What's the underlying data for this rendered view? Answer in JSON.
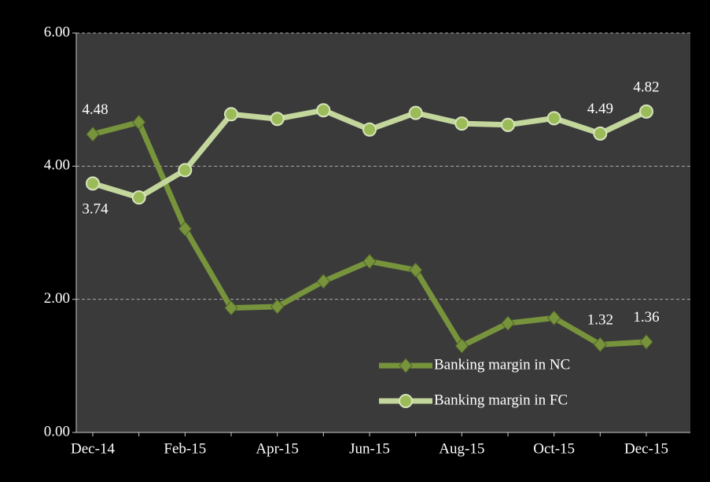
{
  "chart_data": {
    "type": "line",
    "categories": [
      "Dec-14",
      null,
      "Feb-15",
      null,
      "Apr-15",
      null,
      "Jun-15",
      null,
      "Aug-15",
      null,
      "Oct-15",
      null,
      "Dec-15"
    ],
    "series": [
      {
        "name": "Banking margin in NC",
        "color": "#77933c",
        "marker": "diamond",
        "values": [
          4.48,
          4.66,
          3.06,
          1.87,
          1.89,
          2.27,
          2.57,
          2.44,
          1.3,
          1.64,
          1.72,
          1.32,
          1.36
        ],
        "value_labels": [
          "4.48",
          null,
          null,
          null,
          null,
          null,
          null,
          null,
          null,
          null,
          null,
          "1.32",
          "1.36"
        ]
      },
      {
        "name": "Banking margin in FC",
        "color": "#c3d69b",
        "marker": "circle",
        "values": [
          3.74,
          3.53,
          3.94,
          4.78,
          4.71,
          4.84,
          4.55,
          4.8,
          4.64,
          4.62,
          4.72,
          4.49,
          4.82
        ],
        "value_labels": [
          "3.74",
          null,
          null,
          null,
          null,
          null,
          null,
          null,
          null,
          null,
          null,
          "4.49",
          "4.82"
        ]
      }
    ],
    "ylim": [
      0,
      6
    ],
    "yticks": [
      {
        "value": 0,
        "label": "0.00"
      },
      {
        "value": 2,
        "label": "2.00"
      },
      {
        "value": 4,
        "label": "4.00"
      },
      {
        "value": 6,
        "label": "6.00"
      }
    ],
    "grid": true,
    "legend": "lower right"
  }
}
